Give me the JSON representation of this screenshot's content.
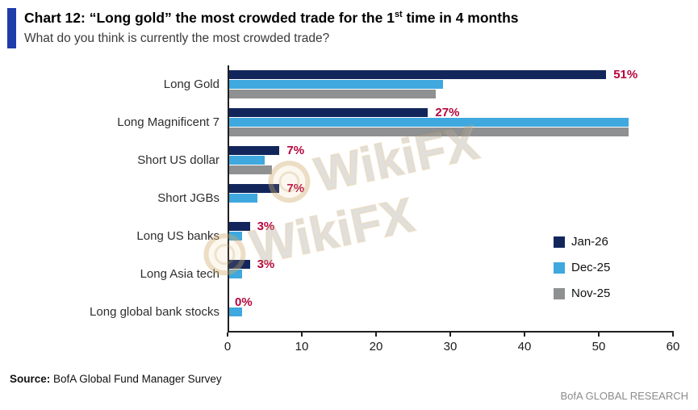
{
  "header": {
    "title_pre": "Chart 12: “Long gold” the most crowded trade for the 1",
    "title_sup": "st",
    "title_post": " time in 4 months",
    "subtitle": "What do you think is currently the most crowded trade?"
  },
  "watermark": {
    "text": "WikiFX"
  },
  "footer": {
    "source_label": "Source:",
    "source_text": " BofA Global Fund Manager Survey",
    "branding": "BofA GLOBAL RESEARCH"
  },
  "chart_data": {
    "type": "bar",
    "orientation": "horizontal",
    "title": "Chart 12: “Long gold” the most crowded trade for the 1st time in 4 months",
    "subtitle": "What do you think is currently the most crowded trade?",
    "categories": [
      "Long Gold",
      "Long Magnificent 7",
      "Short US dollar",
      "Short JGBs",
      "Long US banks",
      "Long Asia tech",
      "Long global bank stocks"
    ],
    "series": [
      {
        "name": "Jan-26",
        "color": "#13265c",
        "values": [
          51,
          27,
          7,
          7,
          3,
          3,
          0
        ]
      },
      {
        "name": "Dec-25",
        "color": "#3fa8de",
        "values": [
          29,
          54,
          5,
          4,
          2,
          2,
          2
        ]
      },
      {
        "name": "Nov-25",
        "color": "#8f9091",
        "values": [
          28,
          54,
          6,
          0,
          0,
          0,
          0
        ]
      }
    ],
    "data_labels": [
      "51%",
      "27%",
      "7%",
      "7%",
      "3%",
      "3%",
      "0%"
    ],
    "data_label_color": "#b5063c",
    "xlim": [
      0,
      60
    ],
    "xticks": [
      0,
      10,
      20,
      30,
      40,
      50,
      60
    ],
    "legend_position": "right-inside",
    "grid": false
  }
}
